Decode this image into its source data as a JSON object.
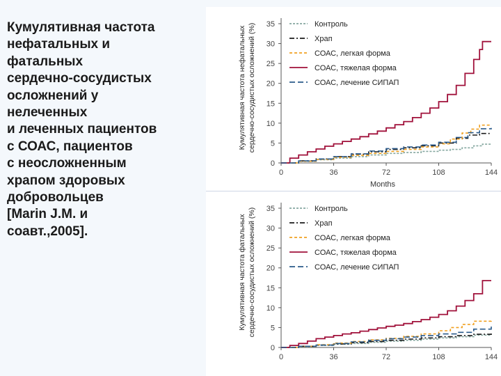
{
  "caption": [
    "Кумулятивная частота",
    "нефатальных и",
    "фатальных",
    "сердечно-сосудистых",
    "осложнений у",
    "нелеченных",
    "и леченных пациентов",
    "с СОАС, пациентов",
    "с неосложненным",
    "храпом здоровых",
    "добровольцев",
    "[Marin J.M. и",
    "соавт.,2005]."
  ],
  "colors": {
    "control": "#86a8a0",
    "snoring": "#1a1a1a",
    "mild": "#f0a020",
    "severe": "#a0103a",
    "cpap": "#2a5a8a",
    "axis": "#555555"
  },
  "chart_data": [
    {
      "type": "line",
      "ylabel_line1": "Кумулятивная частота нефатальных",
      "ylabel_line2": "сердечно-сосудистых осложнений (%)",
      "xlabel": "Months",
      "xlim": [
        0,
        144
      ],
      "ylim": [
        0,
        35
      ],
      "xticks": [
        0,
        36,
        72,
        108,
        144
      ],
      "yticks": [
        0,
        5,
        10,
        15,
        20,
        25,
        30,
        35
      ],
      "series": [
        {
          "name": "Контроль",
          "style": "dotted",
          "color": "control",
          "x": [
            0,
            12,
            24,
            36,
            48,
            60,
            72,
            84,
            96,
            108,
            116,
            124,
            132,
            138,
            144
          ],
          "y": [
            0,
            0.4,
            0.8,
            1.2,
            1.6,
            2.0,
            2.4,
            2.6,
            2.9,
            3.2,
            3.4,
            3.8,
            4.3,
            4.7,
            4.8
          ]
        },
        {
          "name": "Храп",
          "style": "dashdot",
          "color": "snoring",
          "x": [
            0,
            12,
            24,
            36,
            48,
            60,
            72,
            84,
            96,
            108,
            120,
            128,
            136,
            144
          ],
          "y": [
            0,
            0.5,
            1.0,
            1.6,
            2.2,
            2.8,
            3.4,
            3.8,
            4.3,
            5.0,
            6.2,
            7.0,
            7.4,
            7.5
          ]
        },
        {
          "name": "СОАС, легкая форма",
          "style": "dashed",
          "color": "mild",
          "x": [
            0,
            12,
            24,
            36,
            48,
            60,
            72,
            84,
            96,
            108,
            116,
            124,
            130,
            136,
            144
          ],
          "y": [
            0,
            0.4,
            0.9,
            1.4,
            1.9,
            2.4,
            2.9,
            3.4,
            4.0,
            4.8,
            6.0,
            7.5,
            8.5,
            9.5,
            9.5
          ]
        },
        {
          "name": "СОАС, тяжелая форма",
          "style": "solid",
          "color": "severe",
          "x": [
            0,
            6,
            12,
            18,
            24,
            30,
            36,
            42,
            48,
            54,
            60,
            66,
            72,
            78,
            84,
            90,
            96,
            102,
            108,
            114,
            120,
            126,
            132,
            136,
            138,
            144
          ],
          "y": [
            0,
            1.2,
            2.0,
            2.8,
            3.5,
            4.2,
            4.8,
            5.4,
            6.0,
            6.6,
            7.3,
            8.0,
            8.8,
            9.6,
            10.4,
            11.4,
            12.5,
            13.8,
            15.4,
            17.2,
            19.5,
            22.5,
            26.0,
            28.5,
            30.5,
            30.5
          ]
        },
        {
          "name": "СОАС, лечение СИПАП",
          "style": "longdash",
          "color": "cpap",
          "x": [
            0,
            12,
            24,
            36,
            48,
            60,
            72,
            84,
            96,
            108,
            120,
            128,
            136,
            144
          ],
          "y": [
            0,
            0.5,
            1.0,
            1.6,
            2.3,
            3.0,
            3.6,
            4.0,
            4.5,
            5.2,
            6.4,
            7.6,
            8.6,
            8.8
          ]
        }
      ]
    },
    {
      "type": "line",
      "ylabel_line1": "Кумулятивная частота фатальных",
      "ylabel_line2": "сердечно-сосудистых осложнений (%)",
      "xlabel": "",
      "xlim": [
        0,
        144
      ],
      "ylim": [
        0,
        35
      ],
      "xticks": [
        0,
        36,
        72,
        108,
        144
      ],
      "yticks": [
        0,
        5,
        10,
        15,
        20,
        25,
        30,
        35
      ],
      "series": [
        {
          "name": "Контроль",
          "style": "dotted",
          "color": "control",
          "x": [
            0,
            12,
            24,
            36,
            48,
            60,
            72,
            84,
            96,
            108,
            120,
            132,
            144
          ],
          "y": [
            0,
            0.2,
            0.5,
            0.8,
            1.0,
            1.3,
            1.6,
            1.8,
            2.1,
            2.4,
            2.7,
            3.1,
            3.3
          ]
        },
        {
          "name": "Храп",
          "style": "dashdot",
          "color": "snoring",
          "x": [
            0,
            12,
            24,
            36,
            48,
            60,
            72,
            84,
            96,
            108,
            120,
            132,
            144
          ],
          "y": [
            0,
            0.3,
            0.6,
            0.9,
            1.2,
            1.5,
            1.8,
            2.1,
            2.4,
            2.7,
            3.0,
            3.3,
            3.5
          ]
        },
        {
          "name": "СОАС, легкая форма",
          "style": "dashed",
          "color": "mild",
          "x": [
            0,
            12,
            24,
            36,
            48,
            60,
            72,
            84,
            96,
            108,
            116,
            124,
            132,
            144
          ],
          "y": [
            0,
            0.3,
            0.7,
            1.1,
            1.5,
            1.9,
            2.3,
            2.8,
            3.4,
            4.2,
            5.0,
            5.8,
            6.6,
            6.7
          ]
        },
        {
          "name": "СОАС, тяжелая форма",
          "style": "solid",
          "color": "severe",
          "x": [
            0,
            6,
            12,
            18,
            24,
            30,
            36,
            42,
            48,
            54,
            60,
            66,
            72,
            78,
            84,
            90,
            96,
            102,
            108,
            114,
            120,
            126,
            132,
            138,
            144
          ],
          "y": [
            0,
            0.5,
            1.0,
            1.6,
            2.2,
            2.6,
            3.0,
            3.4,
            3.7,
            4.1,
            4.5,
            4.9,
            5.3,
            5.6,
            6.0,
            6.5,
            7.0,
            7.6,
            8.3,
            9.2,
            10.4,
            11.8,
            13.5,
            16.8,
            16.8
          ]
        },
        {
          "name": "СОАС, лечение СИПАП",
          "style": "longdash",
          "color": "cpap",
          "x": [
            0,
            12,
            24,
            36,
            48,
            60,
            72,
            84,
            96,
            108,
            120,
            132,
            144
          ],
          "y": [
            0,
            0.3,
            0.6,
            1.0,
            1.4,
            1.8,
            2.2,
            2.6,
            3.0,
            3.4,
            3.8,
            4.6,
            5.3
          ]
        }
      ]
    }
  ]
}
